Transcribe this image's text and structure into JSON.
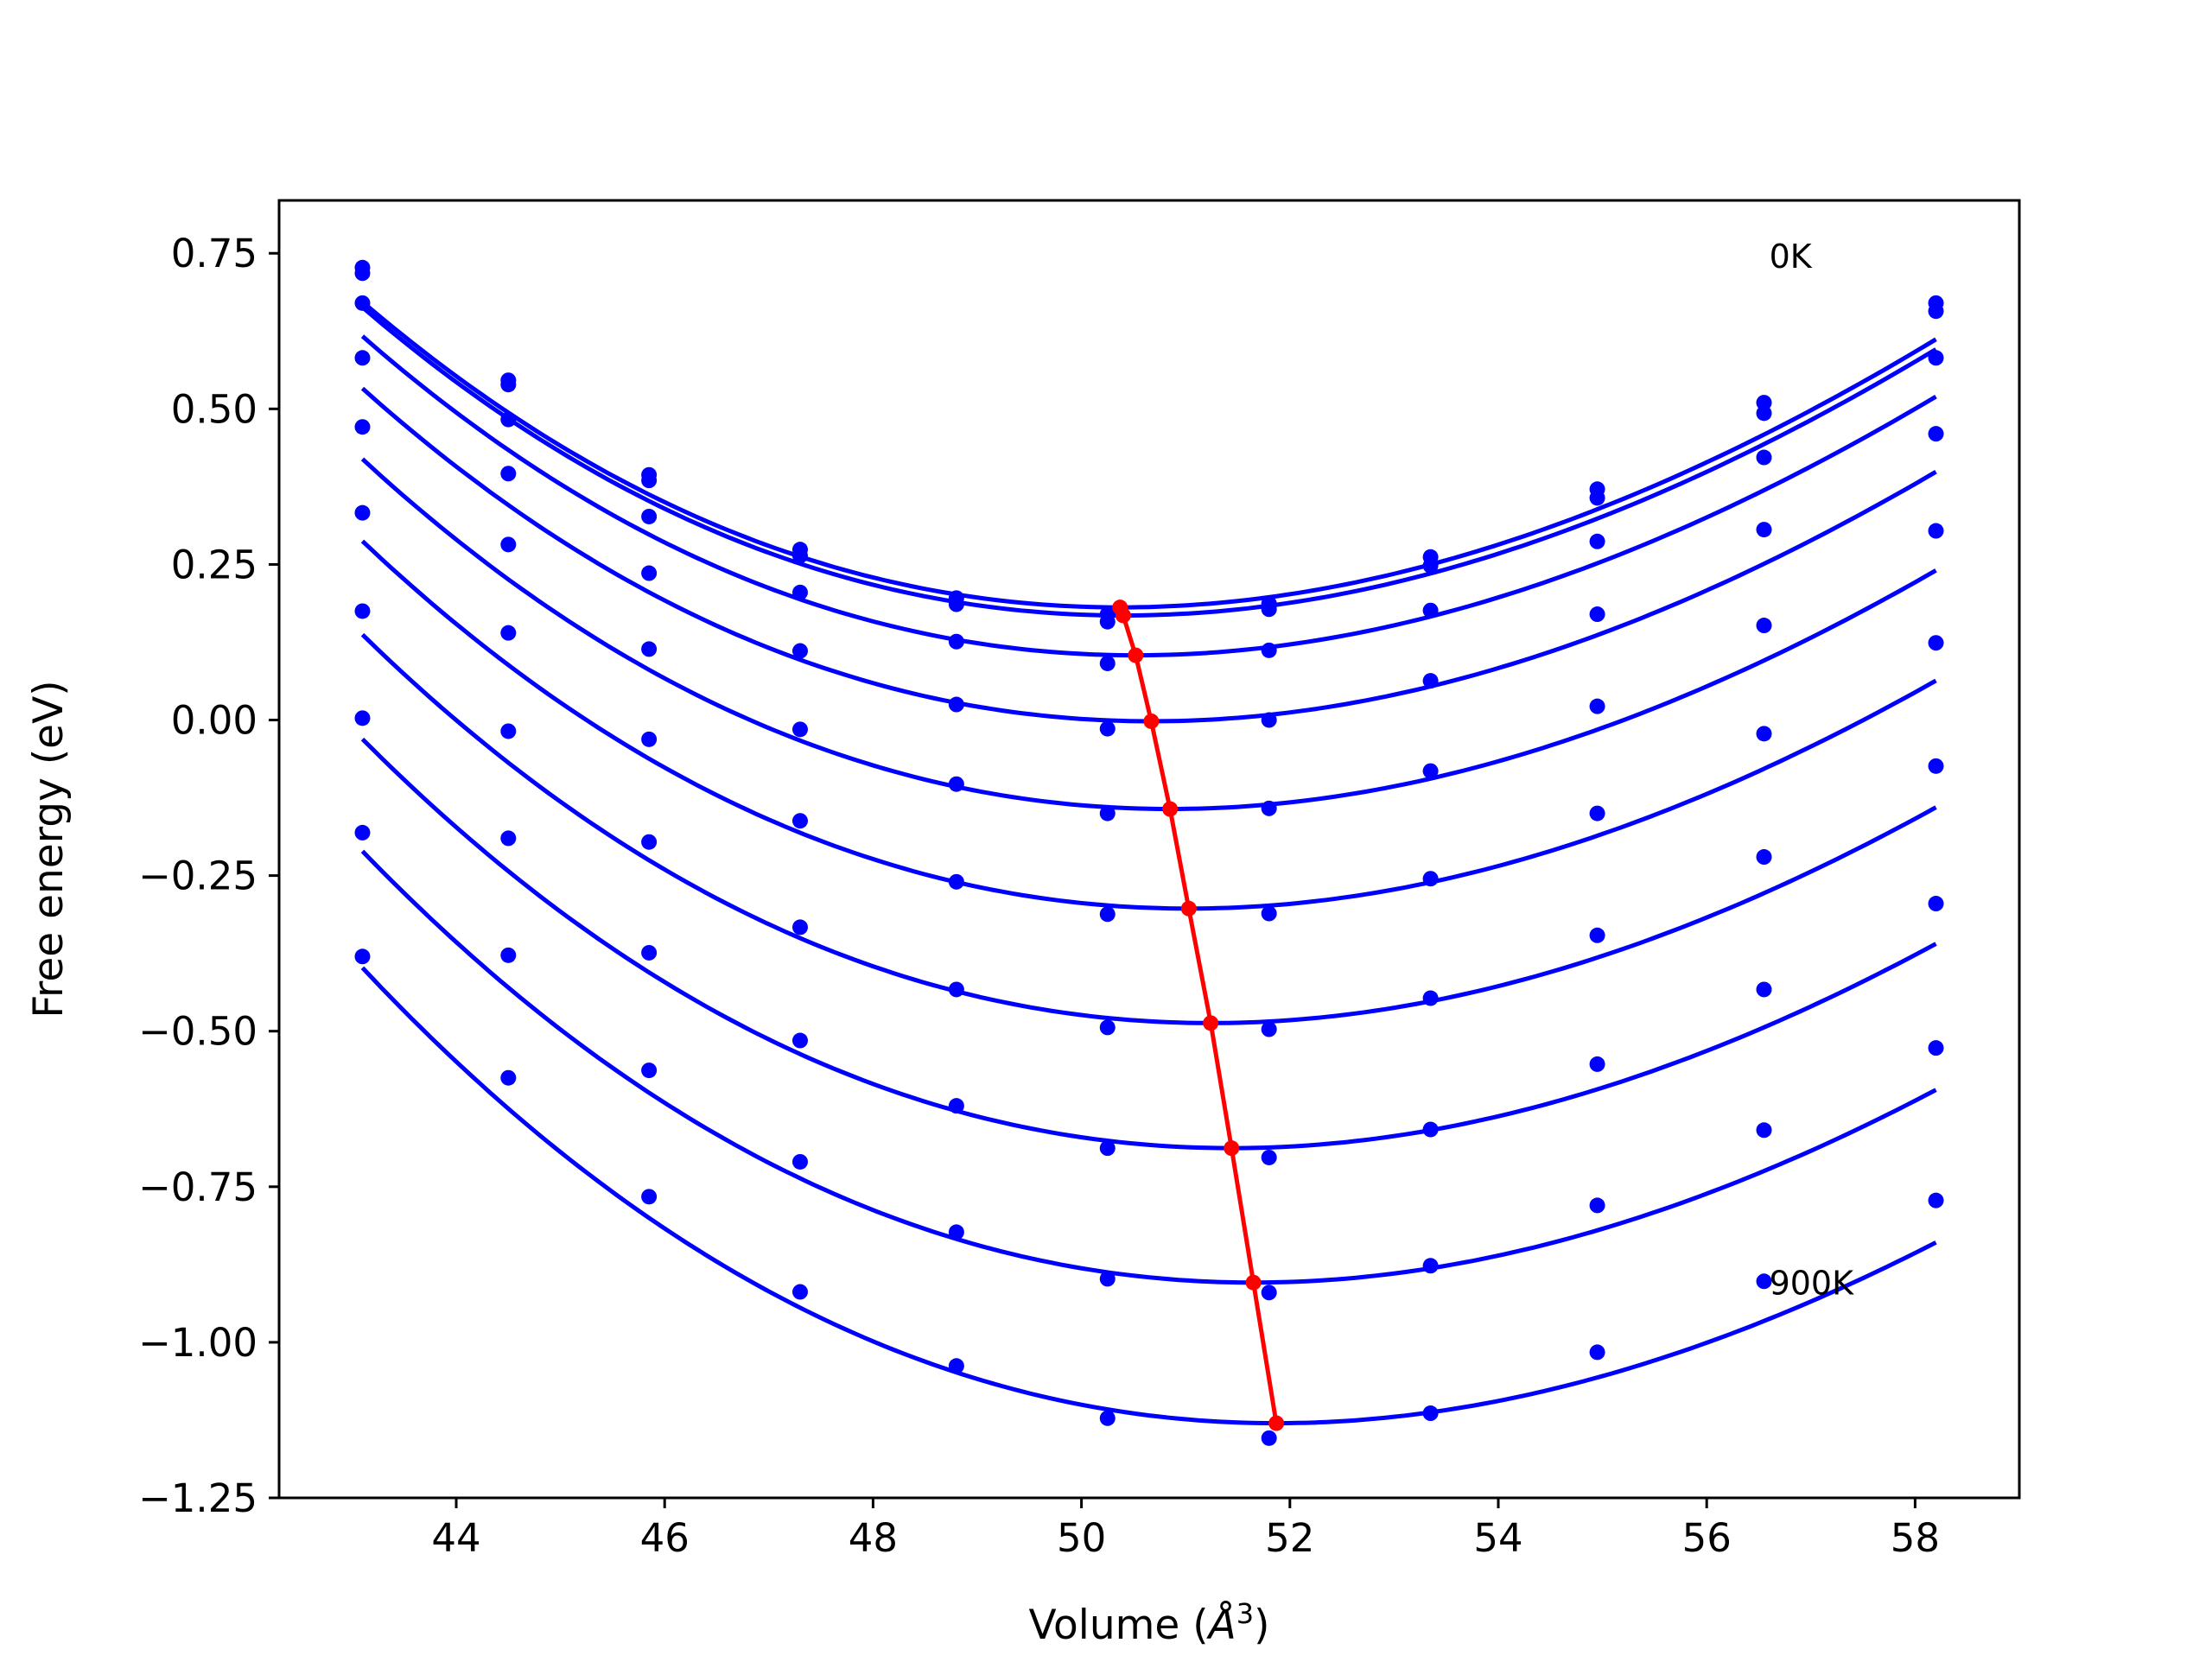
{
  "chart_data": {
    "type": "line",
    "title": "",
    "xlabel_main": "Volume (",
    "xlabel_unit": "Å",
    "xlabel_sup": "3",
    "xlabel_close": ")",
    "ylabel": "Free energy (eV)",
    "xlim": [
      42.3,
      59.0
    ],
    "ylim": [
      -1.25,
      0.835
    ],
    "xticks": [
      44,
      46,
      48,
      50,
      52,
      54,
      56,
      58
    ],
    "xtick_labels": [
      "44",
      "46",
      "48",
      "50",
      "52",
      "54",
      "56",
      "58"
    ],
    "yticks": [
      0.75,
      0.5,
      0.25,
      0.0,
      -0.25,
      -0.5,
      -0.75,
      -1.0,
      -1.25
    ],
    "ytick_labels": [
      "0.75",
      "0.50",
      "0.25",
      "0.00",
      "−0.25",
      "−0.50",
      "−0.75",
      "−1.00",
      "−1.25"
    ],
    "grid": false,
    "annotations": [
      {
        "text": "0K",
        "x": 56.6,
        "y": 0.745
      },
      {
        "text": "900K",
        "x": 56.6,
        "y": -0.905
      }
    ],
    "volumes": [
      43.1,
      44.5,
      45.85,
      47.3,
      48.8,
      50.25,
      51.8,
      53.35,
      54.95,
      56.55,
      58.2
    ],
    "fit_color": "#0000ff",
    "min_color": "#ff0000",
    "series": [
      {
        "points": [
          0.727,
          0.546,
          0.394,
          0.274,
          0.196,
          0.17,
          0.187,
          0.262,
          0.371,
          0.51,
          0.67
        ],
        "fit": {
          "vmin": 50.37,
          "emin": 0.181,
          "a": 0.0082,
          "b": -0.00015
        }
      },
      {
        "points": [
          0.718,
          0.539,
          0.385,
          0.264,
          0.186,
          0.158,
          0.178,
          0.248,
          0.357,
          0.493,
          0.657
        ],
        "fit": {
          "vmin": 50.4,
          "emin": 0.168,
          "a": 0.0082,
          "b": -0.00015
        }
      },
      {
        "points": [
          0.67,
          0.483,
          0.327,
          0.205,
          0.126,
          0.091,
          0.112,
          0.176,
          0.287,
          0.422,
          0.582
        ],
        "fit": {
          "vmin": 50.52,
          "emin": 0.104,
          "a": 0.0082,
          "b": -0.00015
        }
      },
      {
        "points": [
          0.582,
          0.396,
          0.236,
          0.111,
          0.025,
          -0.014,
          0.0,
          0.063,
          0.17,
          0.306,
          0.46
        ],
        "fit": {
          "vmin": 50.67,
          "emin": -0.002,
          "a": 0.0082,
          "b": -0.00015
        }
      },
      {
        "points": [
          0.471,
          0.282,
          0.114,
          -0.015,
          -0.103,
          -0.15,
          -0.142,
          -0.082,
          0.022,
          0.152,
          0.304
        ],
        "fit": {
          "vmin": 50.85,
          "emin": -0.143,
          "a": 0.0082,
          "b": -0.00015
        }
      },
      {
        "points": [
          0.333,
          0.14,
          -0.031,
          -0.162,
          -0.26,
          -0.312,
          -0.311,
          -0.255,
          -0.15,
          -0.022,
          0.124
        ],
        "fit": {
          "vmin": 51.03,
          "emin": -0.303,
          "a": 0.0082,
          "b": -0.00015
        }
      },
      {
        "points": [
          0.175,
          -0.018,
          -0.196,
          -0.333,
          -0.433,
          -0.494,
          -0.497,
          -0.447,
          -0.346,
          -0.22,
          -0.074
        ],
        "fit": {
          "vmin": 51.24,
          "emin": -0.487,
          "a": 0.0082,
          "b": -0.00015
        }
      },
      {
        "points": [
          0.003,
          -0.19,
          -0.374,
          -0.515,
          -0.62,
          -0.688,
          -0.703,
          -0.658,
          -0.553,
          -0.433,
          -0.295
        ],
        "fit": {
          "vmin": 51.44,
          "emin": -0.688,
          "a": 0.0082,
          "b": -0.00015
        }
      },
      {
        "points": [
          -0.181,
          -0.378,
          -0.563,
          -0.71,
          -0.823,
          -0.898,
          -0.92,
          -0.877,
          -0.78,
          -0.659,
          -0.527
        ],
        "fit": {
          "vmin": 51.65,
          "emin": -0.904,
          "a": 0.0082,
          "b": -0.00015
        }
      },
      {
        "points": [
          -0.38,
          -0.575,
          -0.766,
          -0.919,
          -1.038,
          -1.122,
          -1.154,
          -1.114,
          -1.016,
          -0.902,
          -0.772
        ],
        "fit": {
          "vmin": 51.87,
          "emin": -1.13,
          "a": 0.0082,
          "b": -0.00015
        }
      }
    ],
    "minima": {
      "x": [
        50.37,
        50.4,
        50.52,
        50.67,
        50.85,
        51.03,
        51.24,
        51.44,
        51.65,
        51.87
      ],
      "y": [
        0.181,
        0.168,
        0.104,
        -0.002,
        -0.143,
        -0.303,
        -0.487,
        -0.688,
        -0.904,
        -1.13
      ]
    }
  }
}
